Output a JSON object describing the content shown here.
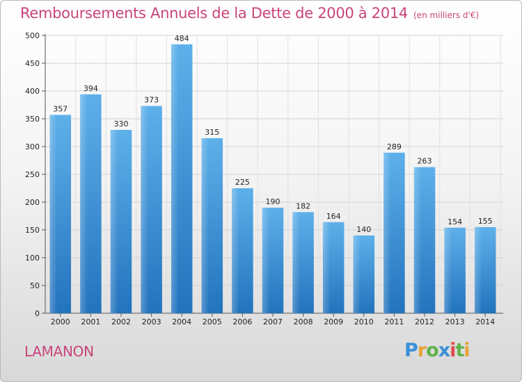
{
  "title": "Remboursements Annuels de la Dette de 2000 à 2014",
  "unit_note": "(en milliers d'€)",
  "commune": "LAMANON",
  "logo": {
    "letters": [
      "P",
      "r",
      "o",
      "x",
      "i",
      "t",
      "i"
    ],
    "colors": [
      "#3a8fd8",
      "#e8a33a",
      "#5fb14a",
      "#3a8fd8",
      "#e04a4a",
      "#5fb14a",
      "#e8a33a"
    ]
  },
  "colors": {
    "accent": "#c8447a",
    "bar": "#3d8fd6"
  },
  "chart_data": {
    "type": "bar",
    "title": "Remboursements Annuels de la Dette de 2000 à 2014",
    "xlabel": "",
    "ylabel": "",
    "categories": [
      "2000",
      "2001",
      "2002",
      "2003",
      "2004",
      "2005",
      "2006",
      "2007",
      "2008",
      "2009",
      "2010",
      "2011",
      "2012",
      "2013",
      "2014"
    ],
    "values": [
      357,
      394,
      330,
      373,
      484,
      315,
      225,
      190,
      182,
      164,
      140,
      289,
      263,
      154,
      155
    ],
    "ylim": [
      0,
      500
    ],
    "yticks": [
      0,
      50,
      100,
      150,
      200,
      250,
      300,
      350,
      400,
      450,
      500
    ],
    "grid": true
  }
}
